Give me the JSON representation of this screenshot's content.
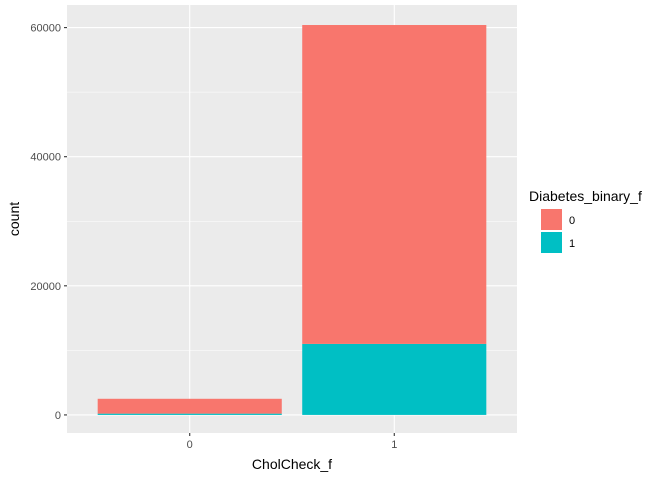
{
  "chart_data": {
    "type": "bar",
    "stacked": true,
    "categories": [
      "0",
      "1"
    ],
    "series": [
      {
        "name": "0",
        "color": "#F8766D",
        "values": [
          2300,
          49400
        ]
      },
      {
        "name": "1",
        "color": "#00BFC4",
        "values": [
          200,
          11000
        ]
      }
    ],
    "xlabel": "CholCheck_f",
    "ylabel": "count",
    "ylim": [
      -2800,
      63500
    ],
    "yticks": [
      0,
      20000,
      40000,
      60000
    ],
    "ytick_labels": [
      "0",
      "20000",
      "40000",
      "60000"
    ],
    "legend": {
      "title": "Diabetes_binary_f",
      "position": "right"
    },
    "grid": true,
    "panel_background": "#EBEBEB"
  }
}
